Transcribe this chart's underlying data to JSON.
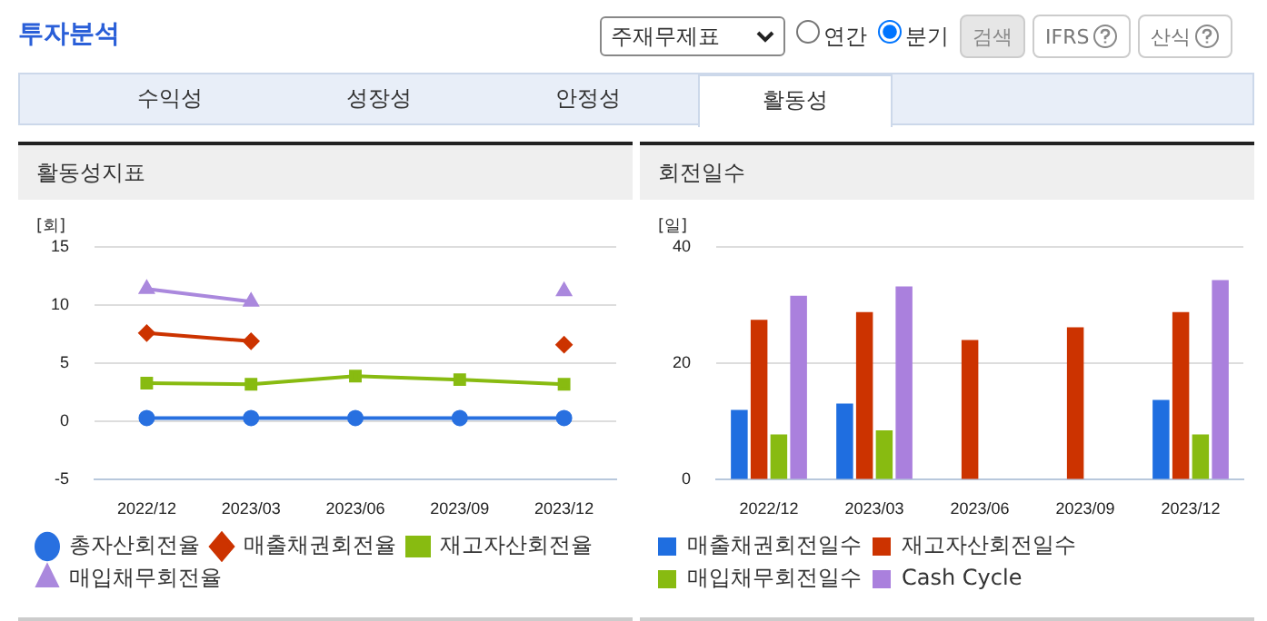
{
  "chart_data": [
    {
      "type": "other",
      "title": "투자분석",
      "annotations": [
        "주재무제표",
        "연간",
        "분기",
        "검색",
        "IFRS",
        "산식",
        "수익성",
        "성장성",
        "안정성",
        "활동성"
      ]
    },
    {
      "type": "line",
      "title": "활동성지표",
      "ylabel": "[회]",
      "categories": [
        "2022/12",
        "2023/03",
        "2023/06",
        "2023/09",
        "2023/12"
      ],
      "ylim": [
        -5,
        15
      ],
      "yticks": [
        -5,
        0,
        5,
        10,
        15
      ],
      "grid": "y",
      "legend": "bottom",
      "series": [
        {
          "name": "총자산회전율",
          "color": "#2870e0",
          "marker": "circle",
          "values": [
            0.3,
            0.3,
            0.3,
            0.3,
            0.3
          ]
        },
        {
          "name": "매출채권회전율",
          "color": "#cc3300",
          "marker": "diamond",
          "values": [
            7.6,
            6.9,
            null,
            null,
            6.6
          ]
        },
        {
          "name": "재고자산회전율",
          "color": "#88bb11",
          "marker": "square",
          "values": [
            3.3,
            3.2,
            3.9,
            3.6,
            3.2
          ]
        },
        {
          "name": "매입채무회전율",
          "color": "#aa88dd",
          "marker": "triangle",
          "values": [
            11.4,
            10.3,
            null,
            null,
            11.2
          ]
        }
      ]
    },
    {
      "type": "bar",
      "title": "회전일수",
      "ylabel": "[일]",
      "categories": [
        "2022/12",
        "2023/03",
        "2023/06",
        "2023/09",
        "2023/12"
      ],
      "ylim": [
        0,
        40
      ],
      "yticks": [
        0,
        20,
        40
      ],
      "grid": "y",
      "legend": "bottom",
      "series": [
        {
          "name": "매출채권회전일수",
          "color": "#1f6ee0",
          "values": [
            12.0,
            13.1,
            null,
            null,
            13.7
          ]
        },
        {
          "name": "재고자산회전일수",
          "color": "#cc3300",
          "values": [
            27.5,
            28.8,
            24.0,
            26.2,
            28.8
          ]
        },
        {
          "name": "매입채무회전일수",
          "color": "#88bb11",
          "values": [
            7.8,
            8.5,
            null,
            null,
            7.8
          ]
        },
        {
          "name": "Cash Cycle",
          "color": "#aa80dd",
          "values": [
            31.6,
            33.2,
            null,
            null,
            34.3
          ]
        }
      ]
    }
  ]
}
